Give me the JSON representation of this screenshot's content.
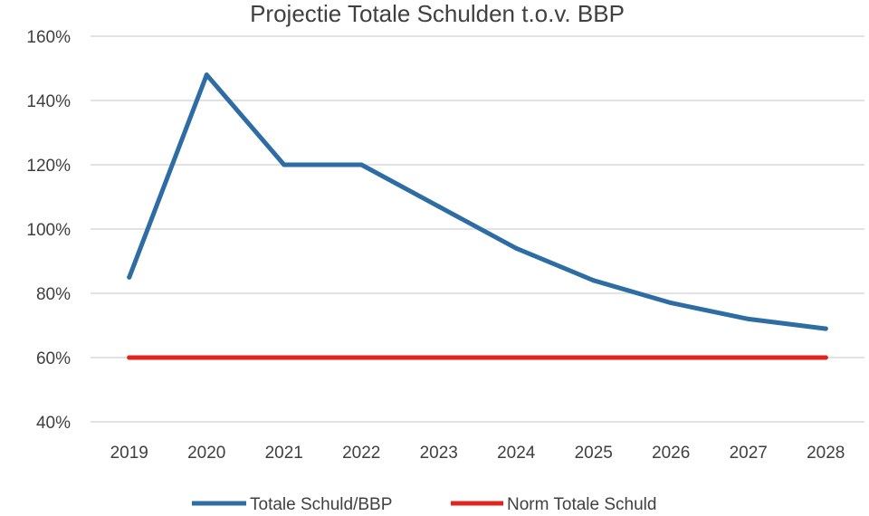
{
  "chart_data": {
    "type": "line",
    "title": "Projectie Totale Schulden t.o.v. BBP",
    "xlabel": "",
    "ylabel": "",
    "categories": [
      "2019",
      "2020",
      "2021",
      "2022",
      "2023",
      "2024",
      "2025",
      "2026",
      "2027",
      "2028"
    ],
    "ylim": [
      40,
      160
    ],
    "yticks": [
      40,
      60,
      80,
      100,
      120,
      140,
      160
    ],
    "ytick_labels": [
      "40%",
      "60%",
      "80%",
      "100%",
      "120%",
      "140%",
      "160%"
    ],
    "grid": true,
    "legend_position": "bottom",
    "series": [
      {
        "name": "Totale Schuld/BBP",
        "color": "#2e6da4",
        "values": [
          85,
          148,
          120,
          120,
          107,
          94,
          84,
          77,
          72,
          69
        ]
      },
      {
        "name": "Norm Totale Schuld",
        "color": "#e0251f",
        "values": [
          60,
          60,
          60,
          60,
          60,
          60,
          60,
          60,
          60,
          60
        ]
      }
    ]
  }
}
